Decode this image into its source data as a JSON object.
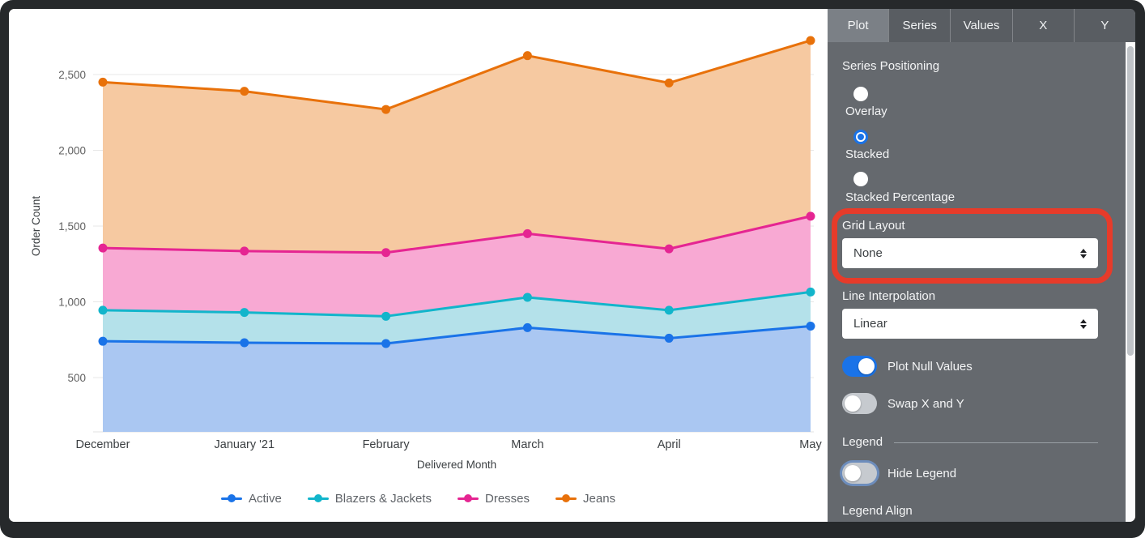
{
  "chart_data": {
    "type": "area",
    "stacked": true,
    "title": "",
    "xlabel": "Delivered Month",
    "ylabel": "Order Count",
    "categories": [
      "December",
      "January '21",
      "February",
      "March",
      "April",
      "May"
    ],
    "yticks": [
      500,
      1000,
      1500,
      2000,
      2500
    ],
    "grid": true,
    "legend_position": "bottom",
    "series": [
      {
        "name": "Active",
        "color": "#1a73e8",
        "fill": "#aac7f2",
        "values": [
          740,
          730,
          725,
          830,
          760,
          840
        ],
        "stack_tops": [
          740,
          730,
          725,
          830,
          760,
          840
        ]
      },
      {
        "name": "Blazers & Jackets",
        "color": "#12b5cb",
        "fill": "#b4e1ea",
        "values": [
          205,
          200,
          180,
          200,
          185,
          225
        ],
        "stack_tops": [
          945,
          930,
          905,
          1030,
          945,
          1065
        ]
      },
      {
        "name": "Dresses",
        "color": "#e52592",
        "fill": "#f8a9d3",
        "values": [
          410,
          405,
          420,
          420,
          405,
          500
        ],
        "stack_tops": [
          1355,
          1335,
          1325,
          1450,
          1350,
          1565
        ]
      },
      {
        "name": "Jeans",
        "color": "#e8710a",
        "fill": "#f6c9a1",
        "values": [
          1095,
          1055,
          945,
          1175,
          1095,
          1160
        ],
        "stack_tops": [
          2450,
          2390,
          2270,
          2625,
          2445,
          2725
        ]
      }
    ]
  },
  "panel": {
    "tabs": [
      {
        "label": "Plot",
        "active": true
      },
      {
        "label": "Series",
        "active": false
      },
      {
        "label": "Values",
        "active": false
      },
      {
        "label": "X",
        "active": false
      },
      {
        "label": "Y",
        "active": false
      }
    ],
    "series_positioning": {
      "label": "Series Positioning",
      "options": [
        {
          "label": "Overlay",
          "selected": false
        },
        {
          "label": "Stacked",
          "selected": true
        },
        {
          "label": "Stacked Percentage",
          "selected": false
        }
      ]
    },
    "grid_layout": {
      "label": "Grid Layout",
      "value": "None"
    },
    "line_interpolation": {
      "label": "Line Interpolation",
      "value": "Linear"
    },
    "toggles": {
      "plot_null_values": {
        "label": "Plot Null Values",
        "on": true
      },
      "swap_x_y": {
        "label": "Swap X and Y",
        "on": false
      },
      "hide_legend": {
        "label": "Hide Legend",
        "on": false
      }
    },
    "legend_section": {
      "label": "Legend"
    },
    "legend_align_label": "Legend Align"
  },
  "colors": {
    "accent_blue": "#1a73e8",
    "annotation_red": "#e73b2a",
    "panel_background": "#65696e",
    "tabbar_background": "#595d62",
    "active_tab_background": "#7b8086"
  }
}
